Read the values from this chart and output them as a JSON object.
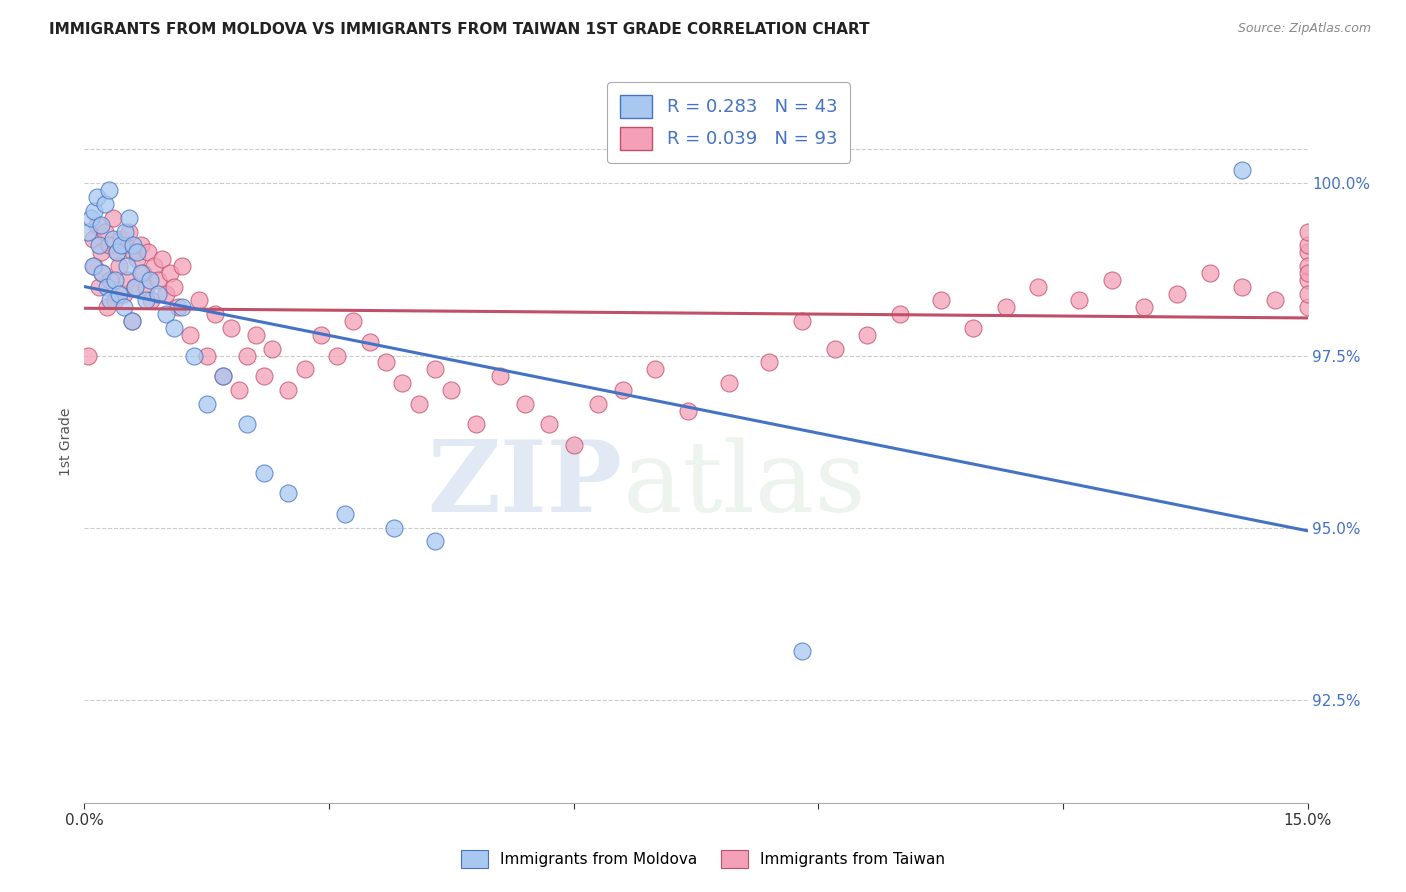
{
  "title": "IMMIGRANTS FROM MOLDOVA VS IMMIGRANTS FROM TAIWAN 1ST GRADE CORRELATION CHART",
  "source": "Source: ZipAtlas.com",
  "ylabel": "1st Grade",
  "x_min": 0.0,
  "x_max": 15.0,
  "y_min": 91.0,
  "y_max": 101.5,
  "x_tick_positions": [
    0.0,
    3.0,
    6.0,
    9.0,
    12.0,
    15.0
  ],
  "x_tick_labels": [
    "0.0%",
    "",
    "",
    "",
    "",
    "15.0%"
  ],
  "y_tick_positions": [
    92.5,
    95.0,
    97.5,
    100.0
  ],
  "y_tick_labels": [
    "92.5%",
    "95.0%",
    "97.5%",
    "100.0%"
  ],
  "r_moldova": 0.283,
  "n_moldova": 43,
  "r_taiwan": 0.039,
  "n_taiwan": 93,
  "legend_label_moldova": "Immigrants from Moldova",
  "legend_label_taiwan": "Immigrants from Taiwan",
  "color_moldova": "#A8C8F0",
  "color_taiwan": "#F4A0B8",
  "line_color_moldova": "#4472C4",
  "line_color_taiwan": "#C0506A",
  "background_color": "#FFFFFF",
  "watermark_zip": "ZIP",
  "watermark_atlas": "atlas",
  "moldova_x": [
    0.05,
    0.08,
    0.1,
    0.12,
    0.15,
    0.18,
    0.2,
    0.22,
    0.25,
    0.28,
    0.3,
    0.32,
    0.35,
    0.38,
    0.4,
    0.42,
    0.45,
    0.48,
    0.5,
    0.52,
    0.55,
    0.58,
    0.6,
    0.62,
    0.65,
    0.7,
    0.75,
    0.8,
    0.9,
    1.0,
    1.1,
    1.2,
    1.35,
    1.5,
    1.7,
    2.0,
    2.2,
    2.5,
    3.2,
    3.8,
    4.3,
    8.8,
    14.2
  ],
  "moldova_y": [
    99.3,
    99.5,
    98.8,
    99.6,
    99.8,
    99.1,
    99.4,
    98.7,
    99.7,
    98.5,
    99.9,
    98.3,
    99.2,
    98.6,
    99.0,
    98.4,
    99.1,
    98.2,
    99.3,
    98.8,
    99.5,
    98.0,
    99.1,
    98.5,
    99.0,
    98.7,
    98.3,
    98.6,
    98.4,
    98.1,
    97.9,
    98.2,
    97.5,
    96.8,
    97.2,
    96.5,
    95.8,
    95.5,
    95.2,
    95.0,
    94.8,
    93.2,
    100.2
  ],
  "taiwan_x": [
    0.05,
    0.1,
    0.12,
    0.15,
    0.18,
    0.2,
    0.22,
    0.25,
    0.28,
    0.3,
    0.32,
    0.35,
    0.38,
    0.4,
    0.42,
    0.45,
    0.48,
    0.5,
    0.52,
    0.55,
    0.58,
    0.6,
    0.62,
    0.65,
    0.7,
    0.72,
    0.75,
    0.78,
    0.82,
    0.85,
    0.9,
    0.95,
    1.0,
    1.05,
    1.1,
    1.15,
    1.2,
    1.3,
    1.4,
    1.5,
    1.6,
    1.7,
    1.8,
    1.9,
    2.0,
    2.1,
    2.2,
    2.3,
    2.5,
    2.7,
    2.9,
    3.1,
    3.3,
    3.5,
    3.7,
    3.9,
    4.1,
    4.3,
    4.5,
    4.8,
    5.1,
    5.4,
    5.7,
    6.0,
    6.3,
    6.6,
    7.0,
    7.4,
    7.9,
    8.4,
    8.8,
    9.2,
    9.6,
    10.0,
    10.5,
    10.9,
    11.3,
    11.7,
    12.2,
    12.6,
    13.0,
    13.4,
    13.8,
    14.2,
    14.6,
    15.0,
    15.0,
    15.0,
    15.0,
    15.0,
    15.0,
    15.0,
    15.0
  ],
  "taiwan_y": [
    97.5,
    99.2,
    98.8,
    99.4,
    98.5,
    99.0,
    98.7,
    99.3,
    98.2,
    99.1,
    98.6,
    99.5,
    98.3,
    99.0,
    98.8,
    99.2,
    98.4,
    99.1,
    98.6,
    99.3,
    98.0,
    99.0,
    98.5,
    98.9,
    99.1,
    98.7,
    98.5,
    99.0,
    98.3,
    98.8,
    98.6,
    98.9,
    98.4,
    98.7,
    98.5,
    98.2,
    98.8,
    97.8,
    98.3,
    97.5,
    98.1,
    97.2,
    97.9,
    97.0,
    97.5,
    97.8,
    97.2,
    97.6,
    97.0,
    97.3,
    97.8,
    97.5,
    98.0,
    97.7,
    97.4,
    97.1,
    96.8,
    97.3,
    97.0,
    96.5,
    97.2,
    96.8,
    96.5,
    96.2,
    96.8,
    97.0,
    97.3,
    96.7,
    97.1,
    97.4,
    98.0,
    97.6,
    97.8,
    98.1,
    98.3,
    97.9,
    98.2,
    98.5,
    98.3,
    98.6,
    98.2,
    98.4,
    98.7,
    98.5,
    98.3,
    99.0,
    98.2,
    98.6,
    99.1,
    98.4,
    98.8,
    99.3,
    98.7
  ]
}
